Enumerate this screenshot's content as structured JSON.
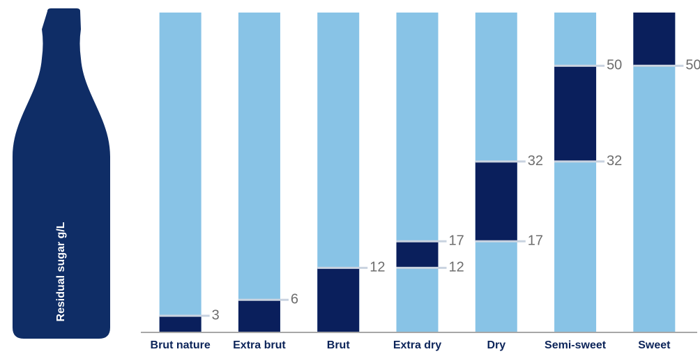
{
  "chart_data": {
    "type": "range_bar",
    "axis_label": "Residual sugar g/L",
    "categories": [
      "Brut nature",
      "Extra brut",
      "Brut",
      "Extra dry",
      "Dry",
      "Semi-sweet",
      "Sweet"
    ],
    "low": [
      null,
      null,
      null,
      12,
      17,
      32,
      50
    ],
    "high": [
      3,
      6,
      12,
      17,
      32,
      50,
      null
    ],
    "ylim": [
      0,
      60
    ],
    "bar_color": "#88c3e6",
    "range_color": "#0a1f5c",
    "bottle_color": "#0f2d66"
  }
}
